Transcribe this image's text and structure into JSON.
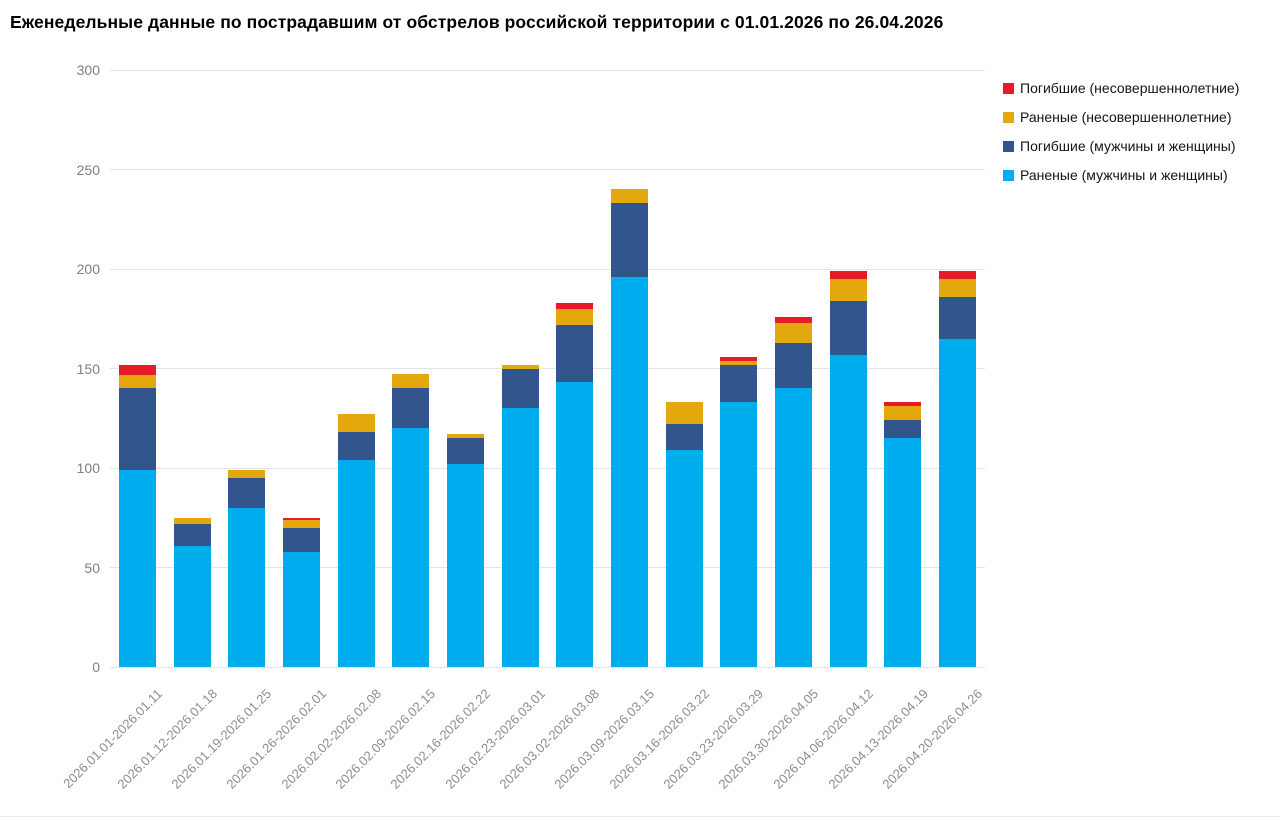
{
  "title": "Еженедельные данные по пострадавшим от обстрелов российской территории с 01.01.2026 по 26.04.2026",
  "colors": {
    "injured_adults": "#00aeef",
    "deaths_adults": "#33558d",
    "injured_minors": "#e4a80f",
    "deaths_minors": "#e8192d",
    "gridline": "#e4e4e4",
    "ytick_text": "#7f7f7f",
    "xtick_text": "#8c8c8c",
    "legend_text": "#141414",
    "background": "#ffffff"
  },
  "legend": [
    {
      "label": "Погибшие (несовершеннолетние)",
      "color": "#e8192d",
      "swatch": "square-icon"
    },
    {
      "label": "Раненые (несовершеннолетние)",
      "color": "#e4a80f",
      "swatch": "square-icon"
    },
    {
      "label": "Погибшие (мужчины и женщины)",
      "color": "#33558d",
      "swatch": "square-icon"
    },
    {
      "label": "Раненые (мужчины и женщины)",
      "color": "#00aeef",
      "swatch": "square-icon"
    }
  ],
  "chart_data": {
    "type": "bar",
    "stacked": true,
    "title": "Еженедельные данные по пострадавшим от обстрелов российской территории с 01.01.2026 по 26.04.2026",
    "xlabel": "",
    "ylabel": "",
    "ylim": [
      0,
      300
    ],
    "yticks": [
      0,
      50,
      100,
      150,
      200,
      250,
      300
    ],
    "grid": true,
    "legend_position": "top-right",
    "categories": [
      "2026.01.01-2026.01.11",
      "2026.01.12-2026.01.18",
      "2026.01.19-2026.01.25",
      "2026.01.26-2026.02.01",
      "2026.02.02-2026.02.08",
      "2026.02.09-2026.02.15",
      "2026.02.16-2026.02.22",
      "2026.02.23-2026.03.01",
      "2026.03.02-2026.03.08",
      "2026.03.09-2026.03.15",
      "2026.03.16-2026.03.22",
      "2026.03.23-2026.03.29",
      "2026.03.30-2026.04.05",
      "2026.04.06-2026.04.12",
      "2026.04.13-2026.04.19",
      "2026.04.20-2026.04.26"
    ],
    "series": [
      {
        "name": "Раненые (мужчины и женщины)",
        "color": "#00aeef",
        "values": [
          99,
          61,
          80,
          58,
          104,
          120,
          102,
          130,
          143,
          196,
          109,
          133,
          140,
          157,
          115,
          165
        ]
      },
      {
        "name": "Погибшие (мужчины и женщины)",
        "color": "#33558d",
        "values": [
          41,
          11,
          15,
          12,
          14,
          20,
          13,
          20,
          29,
          37,
          13,
          19,
          23,
          27,
          9,
          21
        ]
      },
      {
        "name": "Раненые (несовершеннолетние)",
        "color": "#e4a80f",
        "values": [
          7,
          3,
          4,
          4,
          9,
          7,
          2,
          2,
          8,
          7,
          11,
          2,
          10,
          11,
          7,
          9
        ]
      },
      {
        "name": "Погибшие (несовершеннолетние)",
        "color": "#e8192d",
        "values": [
          5,
          0,
          0,
          1,
          0,
          0,
          0,
          0,
          3,
          0,
          0,
          2,
          3,
          4,
          2,
          4
        ]
      }
    ],
    "totals": [
      152,
      75,
      99,
      75,
      127,
      147,
      117,
      152,
      183,
      240,
      133,
      156,
      176,
      199,
      133,
      199
    ]
  }
}
